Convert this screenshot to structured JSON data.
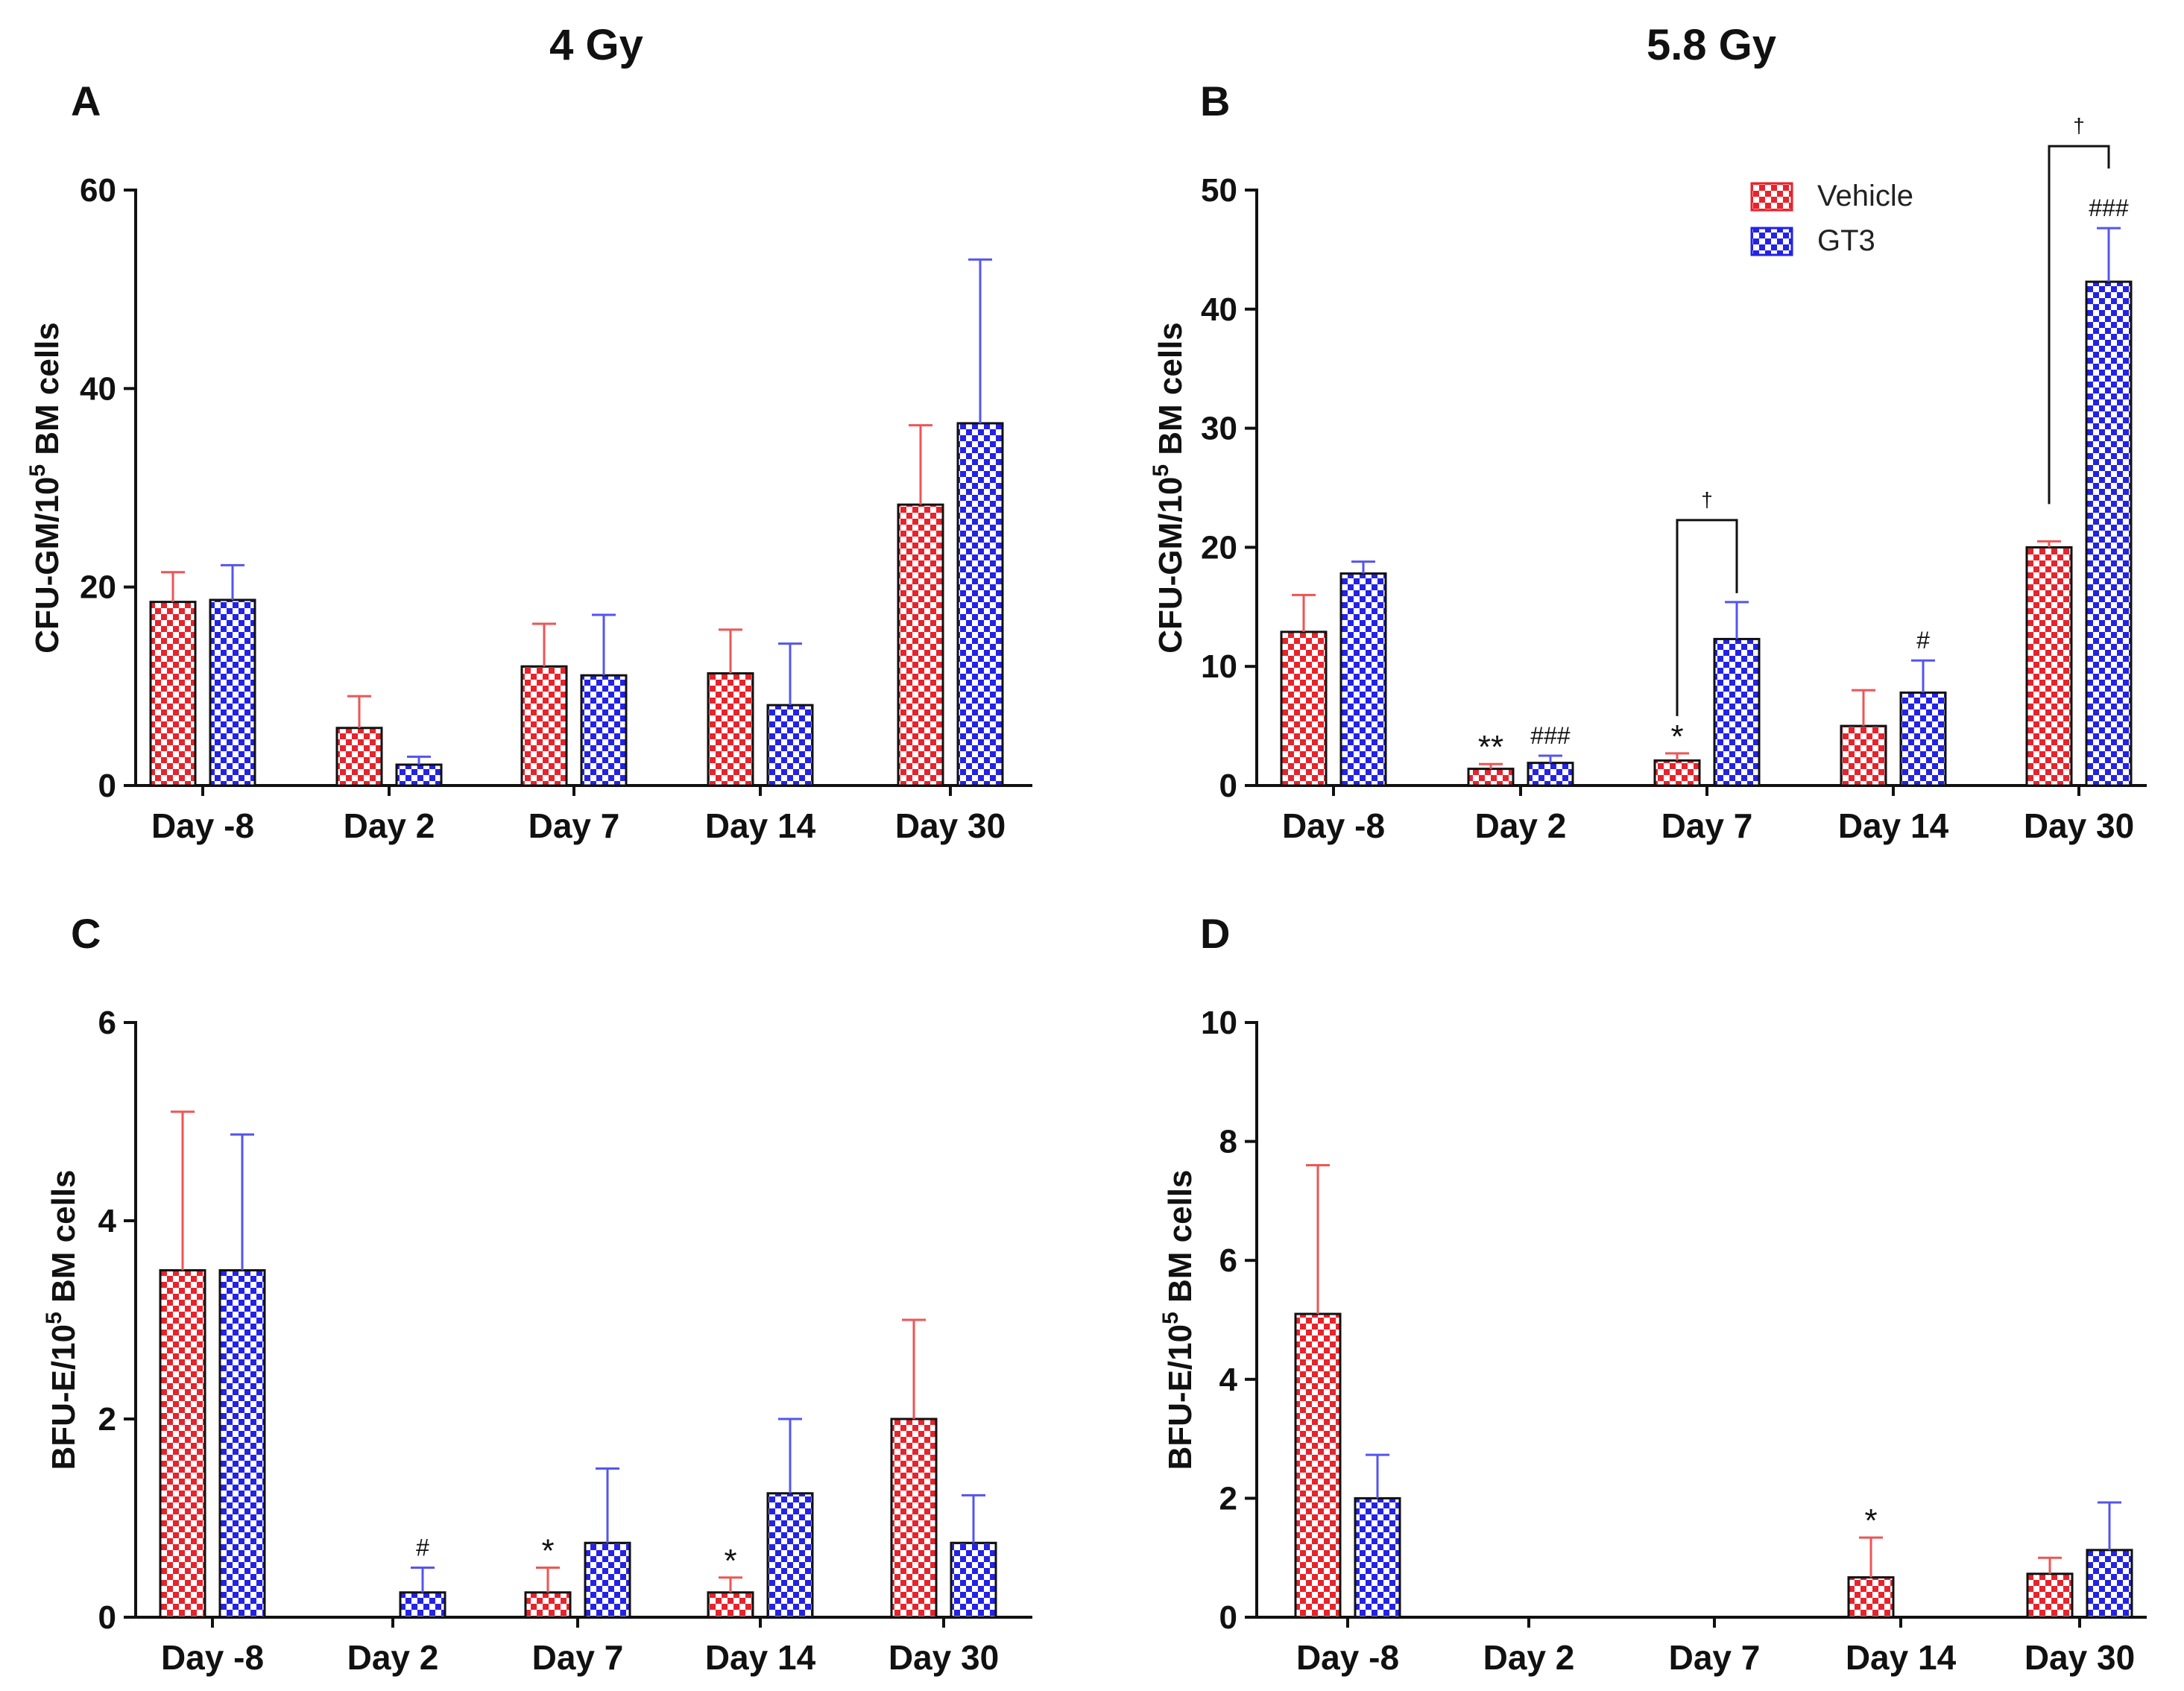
{
  "column_titles": [
    "4 Gy",
    "5.8 Gy"
  ],
  "legend": {
    "vehicle_label": "Vehicle",
    "gt3_label": "GT3"
  },
  "colors": {
    "vehicle": "#e8232b",
    "gt3": "#2222e8",
    "vehicle_error": "#ee5555",
    "gt3_error": "#5555ee",
    "axis": "#111111"
  },
  "chart_data": [
    {
      "panel": "A",
      "type": "bar",
      "title": "4 Gy",
      "ylabel_main": "CFU-GM/10",
      "ylabel_sup": "5",
      "ylabel_rest": " BM cells",
      "categories": [
        "Day -8",
        "Day 2",
        "Day 7",
        "Day 14",
        "Day 30"
      ],
      "ylim": [
        0,
        60
      ],
      "yticks": [
        0,
        20,
        40,
        60
      ],
      "series": [
        {
          "name": "Vehicle",
          "values": [
            18.5,
            5.8,
            12.0,
            11.3,
            28.3
          ],
          "errors": [
            3.0,
            3.2,
            4.3,
            4.4,
            8.0
          ]
        },
        {
          "name": "GT3",
          "values": [
            18.7,
            2.1,
            11.1,
            8.1,
            36.5
          ],
          "errors": [
            3.5,
            0.8,
            6.1,
            6.2,
            16.5
          ]
        }
      ],
      "annotations": []
    },
    {
      "panel": "B",
      "type": "bar",
      "title": "5.8 Gy",
      "ylabel_main": "CFU-GM/10",
      "ylabel_sup": "5",
      "ylabel_rest": " BM cells",
      "categories": [
        "Day -8",
        "Day 2",
        "Day 7",
        "Day 14",
        "Day 30"
      ],
      "ylim": [
        0,
        50
      ],
      "yticks": [
        0,
        10,
        20,
        30,
        40,
        50
      ],
      "series": [
        {
          "name": "Vehicle",
          "values": [
            12.9,
            1.4,
            2.1,
            5.0,
            20.0
          ],
          "errors": [
            3.1,
            0.4,
            0.6,
            3.0,
            0.5
          ]
        },
        {
          "name": "GT3",
          "values": [
            17.8,
            1.9,
            12.3,
            7.8,
            42.3
          ],
          "errors": [
            1.0,
            0.6,
            3.1,
            2.7,
            4.5
          ]
        }
      ],
      "annotations": [
        {
          "category": 1,
          "series": 0,
          "text": "**",
          "kind": "star"
        },
        {
          "category": 1,
          "series": 1,
          "text": "###",
          "kind": "hash"
        },
        {
          "category": 2,
          "series": 0,
          "text": "*",
          "kind": "star"
        },
        {
          "category": 3,
          "series": 1,
          "text": "#",
          "kind": "hash"
        },
        {
          "category": 4,
          "series": 1,
          "text": "###",
          "kind": "hash"
        }
      ],
      "brackets": [
        {
          "category": 2,
          "text": "†"
        },
        {
          "category": 4,
          "text": "†"
        }
      ],
      "show_legend": true
    },
    {
      "panel": "C",
      "type": "bar",
      "title": "",
      "ylabel_main": "BFU-E/10",
      "ylabel_sup": "5",
      "ylabel_rest": " BM cells",
      "categories": [
        "Day -8",
        "Day 2",
        "Day 7",
        "Day 14",
        "Day 30"
      ],
      "ylim": [
        0,
        6
      ],
      "yticks": [
        0,
        2,
        4,
        6
      ],
      "series": [
        {
          "name": "Vehicle",
          "values": [
            3.5,
            0.0,
            0.25,
            0.25,
            2.0
          ],
          "errors": [
            1.6,
            0.0,
            0.25,
            0.15,
            1.0
          ]
        },
        {
          "name": "GT3",
          "values": [
            3.5,
            0.25,
            0.75,
            1.25,
            0.75
          ],
          "errors": [
            1.37,
            0.25,
            0.75,
            0.75,
            0.48
          ]
        }
      ],
      "annotations": [
        {
          "category": 1,
          "series": 1,
          "text": "#",
          "kind": "hash"
        },
        {
          "category": 2,
          "series": 0,
          "text": "*",
          "kind": "star"
        },
        {
          "category": 3,
          "series": 0,
          "text": "*",
          "kind": "star"
        }
      ]
    },
    {
      "panel": "D",
      "type": "bar",
      "title": "",
      "ylabel_main": "BFU-E/10",
      "ylabel_sup": "5",
      "ylabel_rest": " BM cells",
      "categories": [
        "Day -8",
        "Day 2",
        "Day 7",
        "Day 14",
        "Day 30"
      ],
      "ylim": [
        0,
        10
      ],
      "yticks": [
        0,
        2,
        4,
        6,
        8,
        10
      ],
      "series": [
        {
          "name": "Vehicle",
          "values": [
            5.1,
            0.0,
            0.0,
            0.67,
            0.73
          ],
          "errors": [
            2.5,
            0.0,
            0.0,
            0.67,
            0.27
          ]
        },
        {
          "name": "GT3",
          "values": [
            2.0,
            0.0,
            0.0,
            0.0,
            1.13
          ],
          "errors": [
            0.73,
            0.0,
            0.0,
            0.0,
            0.8
          ]
        }
      ],
      "annotations": [
        {
          "category": 3,
          "series": 0,
          "text": "*",
          "kind": "star"
        }
      ]
    }
  ]
}
